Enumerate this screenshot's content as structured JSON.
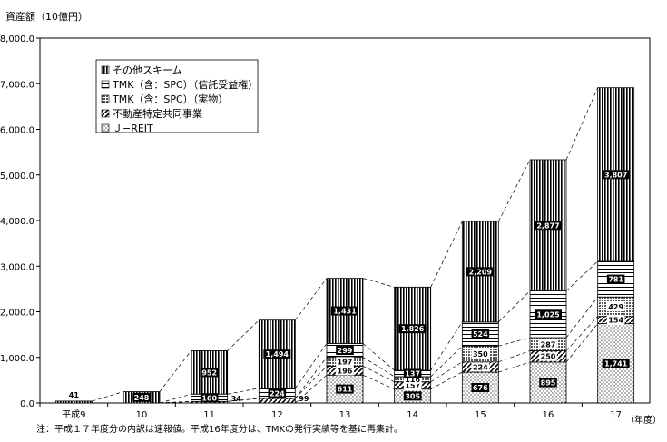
{
  "chart_data": {
    "type": "bar",
    "stacked": true,
    "title": "資産額（10億円）",
    "xlabel": "（年度）",
    "ylabel": "資産額（10億円）",
    "ylim": [
      0,
      8000
    ],
    "yticks": [
      "0.0",
      "1,000.0",
      "2,000.0",
      "3,000.0",
      "4,000.0",
      "5,000.0",
      "6,000.0",
      "7,000.0",
      "8,000.0"
    ],
    "categories": [
      "平成9",
      "10",
      "11",
      "12",
      "13",
      "14",
      "15",
      "16",
      "17"
    ],
    "grid": false,
    "legend_position": "top-left",
    "series": [
      {
        "name": "Ｊ−REIT",
        "values": [
          0,
          0,
          0,
          0,
          611,
          305,
          676,
          895,
          1741
        ],
        "labels": [
          "",
          "",
          "",
          "",
          "611",
          "305",
          "676",
          "895",
          "1,741"
        ]
      },
      {
        "name": "不動産特定共同事業",
        "values": [
          0,
          0,
          34,
          99,
          196,
          157,
          224,
          250,
          154
        ],
        "labels": [
          "",
          "",
          "34",
          "99",
          "196",
          "157",
          "224",
          "250",
          "154"
        ]
      },
      {
        "name": "TMK（含：SPC）（実物）",
        "values": [
          0,
          0,
          0,
          0,
          197,
          116,
          350,
          287,
          429
        ],
        "labels": [
          "",
          "",
          "",
          "",
          "197",
          "116",
          "350",
          "287",
          "429"
        ]
      },
      {
        "name": "TMK（含：SPC）（信託受益権）",
        "values": [
          0,
          0,
          160,
          224,
          299,
          137,
          524,
          1025,
          781
        ],
        "labels": [
          "",
          "",
          "160",
          "224",
          "299",
          "137",
          "524",
          "1,025",
          "781"
        ]
      },
      {
        "name": "その他スキーム",
        "values": [
          41,
          248,
          952,
          1494,
          1431,
          1826,
          2209,
          2877,
          3807
        ],
        "labels": [
          "41",
          "248",
          "952",
          "1,494",
          "1,431",
          "1,826",
          "2,209",
          "2,877",
          "3,807"
        ]
      }
    ],
    "note": "注：平成１７年度分の内訳は速報値。平成16年度分は、TMKの発行実績等を基に再集計。"
  }
}
